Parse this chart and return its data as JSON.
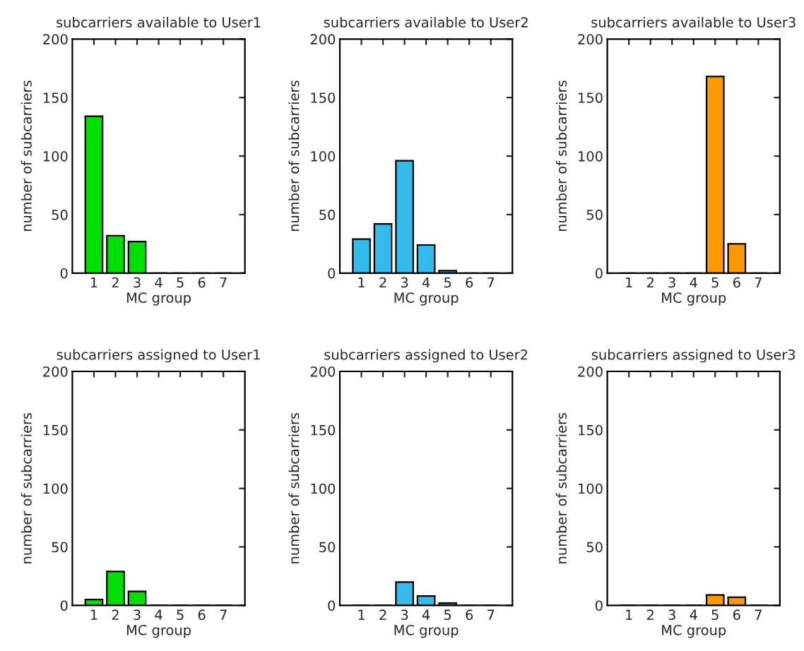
{
  "chart_data": [
    {
      "type": "bar",
      "title": "subcarriers available to User1",
      "xlabel": "MC group",
      "ylabel": "number of subcarriers",
      "categories": [
        "1",
        "2",
        "3",
        "4",
        "5",
        "6",
        "7"
      ],
      "values": [
        134,
        32,
        27,
        0,
        0,
        0,
        0
      ],
      "color": "#00e000",
      "ylim": [
        0,
        200
      ],
      "yticks": [
        0,
        50,
        100,
        150,
        200
      ],
      "grid": false
    },
    {
      "type": "bar",
      "title": "subcarriers available to User2",
      "xlabel": "MC group",
      "ylabel": "number of subcarriers",
      "categories": [
        "1",
        "2",
        "3",
        "4",
        "5",
        "6",
        "7"
      ],
      "values": [
        29,
        42,
        96,
        24,
        2,
        0,
        0
      ],
      "color": "#33bbee",
      "ylim": [
        0,
        200
      ],
      "yticks": [
        0,
        50,
        100,
        150,
        200
      ],
      "grid": false
    },
    {
      "type": "bar",
      "title": "subcarriers available to User3",
      "xlabel": "MC group",
      "ylabel": "number of subcarriers",
      "categories": [
        "1",
        "2",
        "3",
        "4",
        "5",
        "6",
        "7"
      ],
      "values": [
        0,
        0,
        0,
        0,
        168,
        25,
        0
      ],
      "color": "#ff9900",
      "ylim": [
        0,
        200
      ],
      "yticks": [
        0,
        50,
        100,
        150,
        200
      ],
      "grid": false
    },
    {
      "type": "bar",
      "title": "subcarriers assigned to User1",
      "xlabel": "MC group",
      "ylabel": "number of subcarriers",
      "categories": [
        "1",
        "2",
        "3",
        "4",
        "5",
        "6",
        "7"
      ],
      "values": [
        5,
        29,
        12,
        0,
        0,
        0,
        0
      ],
      "color": "#00e000",
      "ylim": [
        0,
        200
      ],
      "yticks": [
        0,
        50,
        100,
        150,
        200
      ],
      "grid": false
    },
    {
      "type": "bar",
      "title": "subcarriers assigned to User2",
      "xlabel": "MC group",
      "ylabel": "number of subcarriers",
      "categories": [
        "1",
        "2",
        "3",
        "4",
        "5",
        "6",
        "7"
      ],
      "values": [
        0,
        0,
        20,
        8,
        2,
        0,
        0
      ],
      "color": "#33bbee",
      "ylim": [
        0,
        200
      ],
      "yticks": [
        0,
        50,
        100,
        150,
        200
      ],
      "grid": false
    },
    {
      "type": "bar",
      "title": "subcarriers assigned to User3",
      "xlabel": "MC group",
      "ylabel": "number of subcarriers",
      "categories": [
        "1",
        "2",
        "3",
        "4",
        "5",
        "6",
        "7"
      ],
      "values": [
        0,
        0,
        0,
        0,
        9,
        7,
        0
      ],
      "color": "#ff9900",
      "ylim": [
        0,
        200
      ],
      "yticks": [
        0,
        50,
        100,
        150,
        200
      ],
      "grid": false
    }
  ]
}
